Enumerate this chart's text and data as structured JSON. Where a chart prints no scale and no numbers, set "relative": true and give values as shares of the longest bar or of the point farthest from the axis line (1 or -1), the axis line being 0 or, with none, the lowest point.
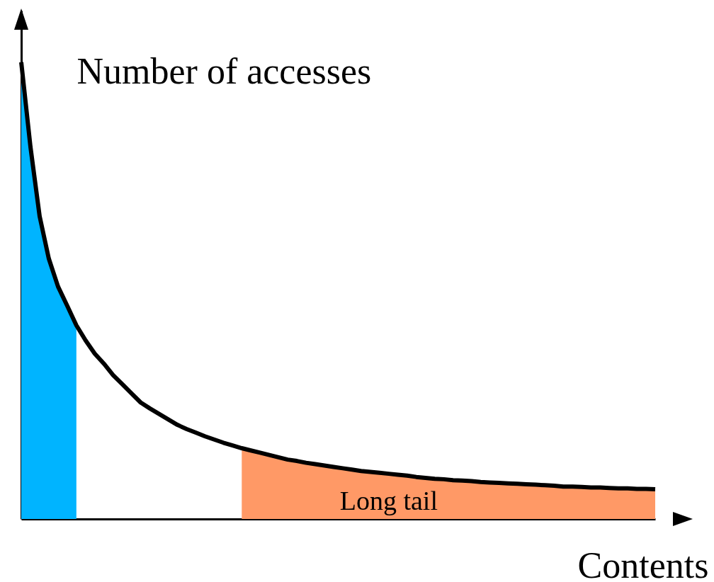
{
  "chart_data": {
    "type": "line",
    "relative": true,
    "xlabel": "Contents",
    "ylabel": "Number of accesses",
    "categories": [
      null,
      null,
      null,
      null,
      null,
      null,
      null,
      null,
      null,
      null,
      null,
      null,
      null,
      null,
      null,
      null,
      null,
      null,
      null,
      null,
      null,
      null,
      null,
      null,
      null,
      null,
      null,
      null,
      null,
      null,
      null,
      null,
      null,
      null,
      null,
      null,
      null,
      null,
      null,
      null,
      null,
      null,
      null,
      null,
      null,
      null,
      null,
      null,
      null,
      null,
      null,
      null,
      null,
      null,
      null,
      null,
      null,
      null,
      null,
      null,
      null,
      null,
      null,
      null,
      null,
      null,
      null,
      null,
      null,
      null
    ],
    "series": [
      {
        "type": "area",
        "color": "#00b4ff",
        "values": [
          1,
          0.815,
          0.663,
          0.57,
          0.509,
          0.467,
          0.424,
          null,
          null,
          null,
          null,
          null,
          null,
          null,
          null,
          null,
          null,
          null,
          null,
          null,
          null,
          null,
          null,
          null,
          null,
          null,
          null,
          null,
          null,
          null,
          null,
          null,
          null,
          null,
          null,
          null,
          null,
          null,
          null,
          null,
          null,
          null,
          null,
          null,
          null,
          null,
          null,
          null,
          null,
          null,
          null,
          null,
          null,
          null,
          null,
          null,
          null,
          null,
          null,
          null,
          null,
          null,
          null,
          null,
          null,
          null,
          null,
          null,
          null,
          null
        ]
      },
      {
        "type": "area",
        "color": "#ff9966",
        "values": [
          null,
          null,
          null,
          null,
          null,
          null,
          null,
          null,
          null,
          null,
          null,
          null,
          null,
          null,
          null,
          null,
          null,
          null,
          null,
          null,
          null,
          null,
          null,
          null,
          0.155,
          0.15,
          0.145,
          0.14,
          0.135,
          0.13,
          0.127,
          0.123,
          0.12,
          0.117,
          0.114,
          0.111,
          0.108,
          0.105,
          0.103,
          0.101,
          0.099,
          0.097,
          0.095,
          0.092,
          0.09,
          0.088,
          0.087,
          0.085,
          0.084,
          0.083,
          0.081,
          0.08,
          0.079,
          0.078,
          0.077,
          0.076,
          0.075,
          0.074,
          0.073,
          0.071,
          0.071,
          0.07,
          0.069,
          0.069,
          0.068,
          0.067,
          0.067,
          0.066,
          0.066,
          0.065
        ]
      },
      {
        "color": "#000000",
        "values": [
          1,
          0.815,
          0.663,
          0.57,
          0.509,
          0.467,
          0.424,
          0.391,
          0.362,
          0.34,
          0.315,
          0.295,
          0.275,
          0.255,
          0.242,
          0.23,
          0.218,
          0.206,
          0.197,
          0.189,
          0.181,
          0.174,
          0.167,
          0.161,
          0.155,
          0.15,
          0.145,
          0.14,
          0.135,
          0.13,
          0.127,
          0.123,
          0.12,
          0.117,
          0.114,
          0.111,
          0.108,
          0.105,
          0.103,
          0.101,
          0.099,
          0.097,
          0.095,
          0.092,
          0.09,
          0.088,
          0.087,
          0.085,
          0.084,
          0.083,
          0.081,
          0.08,
          0.079,
          0.078,
          0.077,
          0.076,
          0.075,
          0.074,
          0.073,
          0.071,
          0.071,
          0.07,
          0.069,
          0.069,
          0.068,
          0.067,
          0.067,
          0.066,
          0.066,
          0.065
        ]
      }
    ],
    "annotations": [
      "Long tail"
    ],
    "grid": false
  }
}
